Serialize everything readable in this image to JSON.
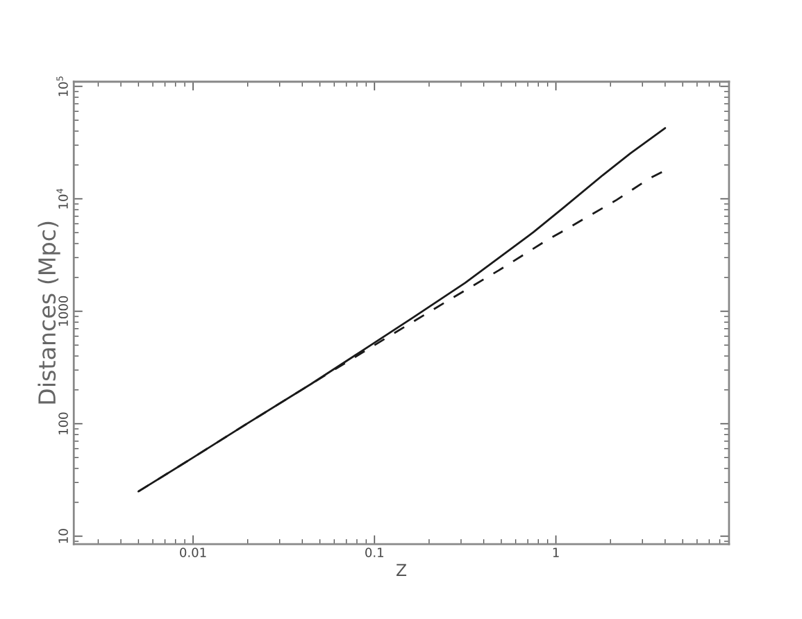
{
  "chart_data": {
    "type": "line",
    "xlabel": "Z",
    "ylabel": "Distances (Mpc)",
    "log": "xy",
    "grid": false,
    "xlim": [
      0.0022,
      9
    ],
    "ylim": [
      8.5,
      110000
    ],
    "xticks": [
      0.01,
      0.1,
      1
    ],
    "yticks": [
      10,
      100,
      1000,
      {
        "value": 10000,
        "label": "10$^{4}$"
      },
      {
        "value": 100000,
        "label": "10$^{5}$"
      }
    ],
    "series": [
      {
        "color": "#1a1a1a",
        "line_style": "solid",
        "x": [
          0.005,
          0.01,
          0.02,
          0.0446,
          0.1,
          0.163,
          0.316,
          0.753,
          1.1,
          1.81,
          2.57,
          4.0
        ],
        "values": [
          25,
          50,
          101,
          225,
          525,
          880,
          1790,
          5060,
          8320,
          16200,
          25300,
          42600
        ]
      },
      {
        "color": "#1a1a1a",
        "line_style": "dashed",
        "x": [
          0.005,
          0.01,
          0.02,
          0.0446,
          0.1,
          0.249,
          0.484,
          0.9,
          1.07,
          2.16,
          3.26,
          4.0
        ],
        "values": [
          25,
          50,
          101,
          225,
          500,
          1220,
          2310,
          4330,
          5060,
          9770,
          15100,
          17900
        ]
      }
    ]
  }
}
